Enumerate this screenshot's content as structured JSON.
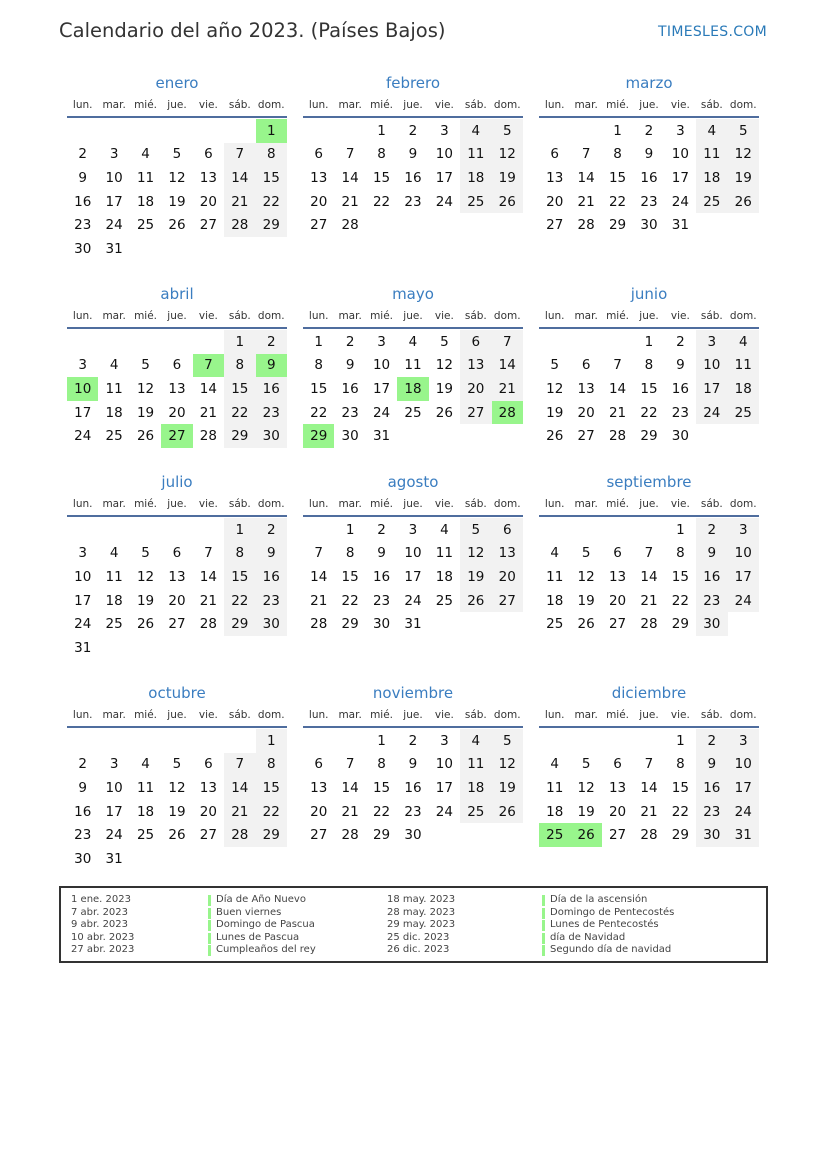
{
  "header": {
    "title": "Calendario del año 2023. (Países Bajos)",
    "site": "TIMESLES.COM"
  },
  "weekdays": [
    "lun.",
    "mar.",
    "mié.",
    "jue.",
    "vie.",
    "sáb.",
    "dom."
  ],
  "colors": {
    "holiday": "#98f58c",
    "weekend": "#f2f2f2",
    "accent": "#3a7dc0"
  },
  "months": [
    {
      "name": "enero",
      "offset": 6,
      "days": 31,
      "holidays": [
        1
      ]
    },
    {
      "name": "febrero",
      "offset": 2,
      "days": 28,
      "holidays": []
    },
    {
      "name": "marzo",
      "offset": 2,
      "days": 31,
      "holidays": []
    },
    {
      "name": "abril",
      "offset": 5,
      "days": 30,
      "holidays": [
        7,
        9,
        10,
        27
      ]
    },
    {
      "name": "mayo",
      "offset": 0,
      "days": 31,
      "holidays": [
        18,
        28,
        29
      ]
    },
    {
      "name": "junio",
      "offset": 3,
      "days": 30,
      "holidays": []
    },
    {
      "name": "julio",
      "offset": 5,
      "days": 31,
      "holidays": []
    },
    {
      "name": "agosto",
      "offset": 1,
      "days": 31,
      "holidays": []
    },
    {
      "name": "septiembre",
      "offset": 4,
      "days": 30,
      "holidays": []
    },
    {
      "name": "octubre",
      "offset": 6,
      "days": 31,
      "holidays": []
    },
    {
      "name": "noviembre",
      "offset": 2,
      "days": 30,
      "holidays": []
    },
    {
      "name": "diciembre",
      "offset": 4,
      "days": 31,
      "holidays": [
        25,
        26
      ]
    }
  ],
  "legend": [
    {
      "date": "1 ene. 2023",
      "name": "Día de Año Nuevo"
    },
    {
      "date": "7 abr. 2023",
      "name": "Buen viernes"
    },
    {
      "date": "9 abr. 2023",
      "name": "Domingo de Pascua"
    },
    {
      "date": "10 abr. 2023",
      "name": "Lunes de Pascua"
    },
    {
      "date": "27 abr. 2023",
      "name": "Cumpleaños del rey"
    },
    {
      "date": "18 may. 2023",
      "name": "Día de la ascensión"
    },
    {
      "date": "28 may. 2023",
      "name": "Domingo de Pentecostés"
    },
    {
      "date": "29 may. 2023",
      "name": "Lunes de Pentecostés"
    },
    {
      "date": "25 dic. 2023",
      "name": "día de Navidad"
    },
    {
      "date": "26 dic. 2023",
      "name": "Segundo día de navidad"
    }
  ]
}
